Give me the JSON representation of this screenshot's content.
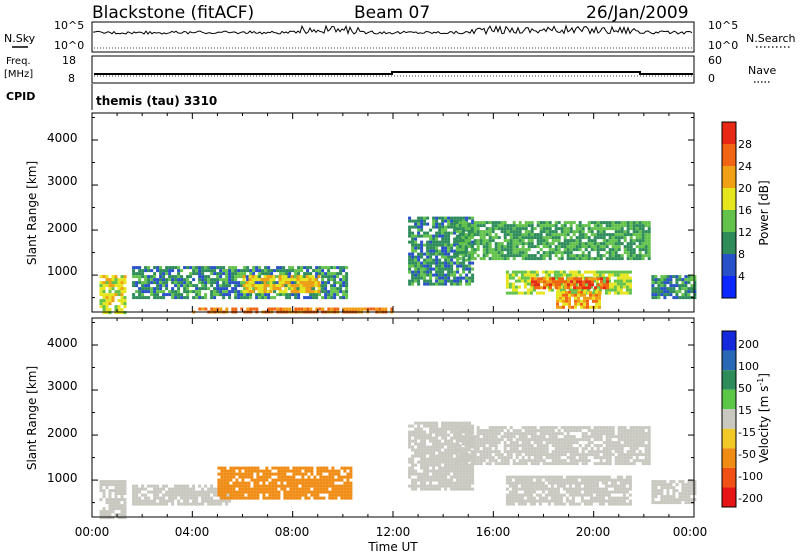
{
  "header": {
    "station": "Blackstone (fitACF)",
    "beam": "Beam 07",
    "date": "26/Jan/2009"
  },
  "sky_panel": {
    "left_label": "N.Sky",
    "right_label": "N.Search",
    "left_ticks": [
      "10^5",
      "10^0"
    ],
    "right_ticks": [
      "10^5",
      "10^0"
    ]
  },
  "freq_panel": {
    "left_label_1": "Freq.",
    "left_label_2": "[MHz]",
    "right_label": "Nave",
    "left_ticks": [
      "18",
      "8"
    ],
    "right_ticks": [
      "60",
      "0"
    ]
  },
  "cpid_panel": {
    "label": "CPID",
    "value": "themis (tau) 3310"
  },
  "x_axis": {
    "label": "Time UT",
    "ticks": [
      "00:00",
      "04:00",
      "08:00",
      "12:00",
      "16:00",
      "20:00",
      "00:00"
    ]
  },
  "power_panel": {
    "ylabel": "Slant Range [km]",
    "yticks": [
      "1000",
      "2000",
      "3000",
      "4000"
    ],
    "colorbar_label": "Power [dB]",
    "colorbar_ticks": [
      "4",
      "8",
      "12",
      "16",
      "20",
      "24",
      "28"
    ],
    "colorbar_colors": [
      "#0a28ff",
      "#2850c8",
      "#2e8c5a",
      "#62c24a",
      "#e6e61e",
      "#f0a014",
      "#f06414",
      "#e62814"
    ]
  },
  "velocity_panel": {
    "ylabel": "Slant Range [km]",
    "yticks": [
      "1000",
      "2000",
      "3000",
      "4000"
    ],
    "colorbar_label": "Velocity [m s^-1]",
    "colorbar_ticks": [
      "200",
      "100",
      "50",
      "15",
      "-15",
      "-50",
      "-100",
      "-200"
    ],
    "colorbar_colors": [
      "#1428dc",
      "#2868b4",
      "#2e8c5a",
      "#5ac846",
      "#c8c8c0",
      "#f0c828",
      "#f08c14",
      "#f05014",
      "#e61414"
    ]
  },
  "chart_data": [
    {
      "type": "heatmap",
      "title": "Power",
      "xlabel": "Time UT",
      "ylabel": "Slant Range [km]",
      "xlim_hours": [
        0,
        24
      ],
      "ylim_km": [
        180,
        4600
      ],
      "value_unit": "dB",
      "regions": [
        {
          "t0": 0.3,
          "t1": 1.3,
          "r0": 200,
          "r1": 1000,
          "value": 18
        },
        {
          "t0": 1.6,
          "t1": 10.2,
          "r0": 500,
          "r1": 1200,
          "value": 10
        },
        {
          "t0": 6.0,
          "t1": 9.0,
          "r0": 650,
          "r1": 1000,
          "value": 20
        },
        {
          "t0": 4.0,
          "t1": 12.0,
          "r0": 190,
          "r1": 280,
          "value": 24
        },
        {
          "t0": 12.6,
          "t1": 15.2,
          "r0": 800,
          "r1": 2300,
          "value": 10
        },
        {
          "t0": 14.5,
          "t1": 22.2,
          "r0": 1400,
          "r1": 2200,
          "value": 12
        },
        {
          "t0": 16.5,
          "t1": 21.5,
          "r0": 600,
          "r1": 1100,
          "value": 16
        },
        {
          "t0": 17.5,
          "t1": 20.5,
          "r0": 700,
          "r1": 950,
          "value": 26
        },
        {
          "t0": 18.5,
          "t1": 20.2,
          "r0": 300,
          "r1": 650,
          "value": 22
        },
        {
          "t0": 22.3,
          "t1": 24.0,
          "r0": 500,
          "r1": 1000,
          "value": 10
        }
      ]
    },
    {
      "type": "heatmap",
      "title": "Velocity",
      "xlabel": "Time UT",
      "ylabel": "Slant Range [km]",
      "xlim_hours": [
        0,
        24
      ],
      "ylim_km": [
        180,
        4600
      ],
      "value_unit": "m s^-1",
      "regions": [
        {
          "t0": 0.3,
          "t1": 1.3,
          "r0": 200,
          "r1": 1000,
          "value": 0
        },
        {
          "t0": 1.6,
          "t1": 5.5,
          "r0": 500,
          "r1": 900,
          "value": 0
        },
        {
          "t0": 5.0,
          "t1": 10.3,
          "r0": 600,
          "r1": 1300,
          "value": -75
        },
        {
          "t0": 12.6,
          "t1": 15.2,
          "r0": 800,
          "r1": 2300,
          "value": 0
        },
        {
          "t0": 14.5,
          "t1": 22.2,
          "r0": 1400,
          "r1": 2200,
          "value": 0
        },
        {
          "t0": 16.5,
          "t1": 21.5,
          "r0": 500,
          "r1": 1100,
          "value": 0
        },
        {
          "t0": 22.3,
          "t1": 24.0,
          "r0": 500,
          "r1": 1000,
          "value": 0
        }
      ]
    }
  ]
}
